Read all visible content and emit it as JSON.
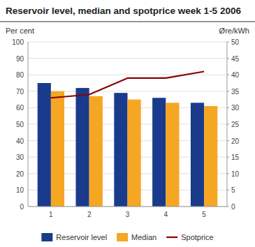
{
  "chart_data": {
    "type": "bar",
    "title": "Reservoir level, median and spotprice week 1-5 2006",
    "ylabel": "Per cent",
    "y2label": "Øre/kWh",
    "x": [
      1,
      2,
      3,
      4,
      5
    ],
    "xlim": [
      0.4,
      5.6
    ],
    "xticks": [
      1,
      2,
      3,
      4,
      5
    ],
    "series": [
      {
        "name": "Reservoir level",
        "color": "#1a3a8c",
        "values": [
          75,
          72,
          69,
          66,
          63
        ]
      },
      {
        "name": "Median",
        "color": "#f5a623",
        "values": [
          70,
          67,
          65,
          63,
          61
        ]
      },
      {
        "name": "Spotprice",
        "type": "line",
        "axis": "y2",
        "color": "#8b0000",
        "values": [
          33,
          34,
          39,
          39,
          41
        ]
      }
    ],
    "ylim": [
      0,
      100
    ],
    "yticks": [
      0,
      10,
      20,
      30,
      40,
      50,
      60,
      70,
      80,
      90,
      100
    ],
    "y2lim": [
      0,
      50
    ],
    "y2ticks": [
      0,
      5,
      10,
      15,
      20,
      25,
      30,
      35,
      40,
      45,
      50
    ],
    "grid": true,
    "legend": "bottom"
  }
}
